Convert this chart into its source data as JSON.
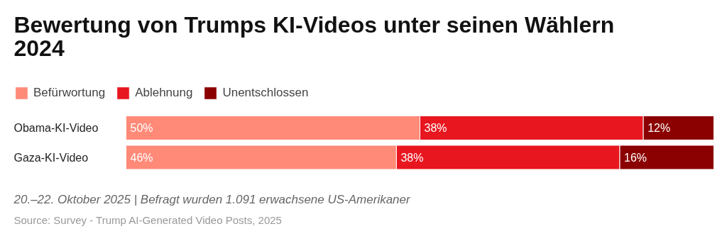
{
  "chart_data": {
    "type": "bar",
    "orientation": "horizontal",
    "stacked": true,
    "title": "Bewertung von Trumps KI-Videos unter seinen Wählern 2024",
    "categories": [
      "Obama-KI-Video",
      "Gaza-KI-Video"
    ],
    "series": [
      {
        "name": "Befürwortung",
        "color": "#ff8a78",
        "values": [
          50,
          46
        ],
        "value_labels": [
          "50%",
          "46%"
        ]
      },
      {
        "name": "Ablehnung",
        "color": "#e8161f",
        "values": [
          38,
          38
        ],
        "value_labels": [
          "38%",
          "38%"
        ]
      },
      {
        "name": "Unentschlossen",
        "color": "#8b0000",
        "values": [
          12,
          16
        ],
        "value_labels": [
          "12%",
          "16%"
        ]
      }
    ],
    "legend": "top left",
    "annotations": [
      "20.–22. Oktober 2025 | Befragt wurden 1.091 erwachsene US-Amerikaner",
      "Source: Survey - Trump AI-Generated Video Posts, 2025"
    ]
  }
}
